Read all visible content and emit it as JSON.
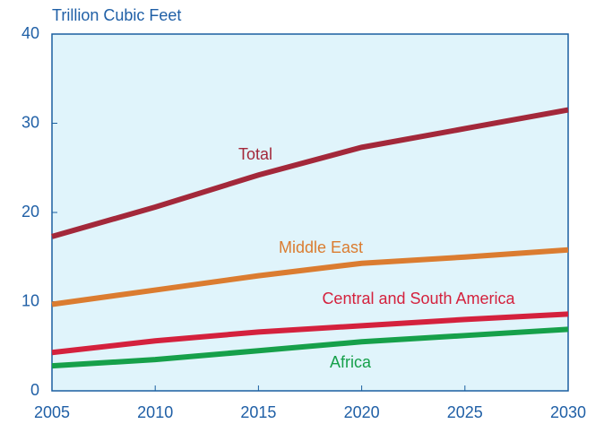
{
  "chart_data": {
    "type": "line",
    "y_axis_label": "Trillion Cubic Feet",
    "x": [
      2005,
      2010,
      2015,
      2020,
      2025,
      2030
    ],
    "xlim": [
      2005,
      2030
    ],
    "xticks": [
      2005,
      2010,
      2015,
      2020,
      2025,
      2030
    ],
    "ylim": [
      0,
      40
    ],
    "yticks": [
      0,
      10,
      20,
      30,
      40
    ],
    "series": [
      {
        "name": "Total",
        "color": "#a3283a",
        "values": [
          17.3,
          20.6,
          24.2,
          27.3,
          29.4,
          31.5
        ]
      },
      {
        "name": "Middle East",
        "color": "#db7c30",
        "values": [
          9.7,
          11.3,
          12.9,
          14.3,
          15.0,
          15.8
        ]
      },
      {
        "name": "Central and South America",
        "color": "#d4213d",
        "values": [
          4.3,
          5.6,
          6.6,
          7.3,
          8.0,
          8.6
        ]
      },
      {
        "name": "Africa",
        "color": "#16a04a",
        "values": [
          2.8,
          3.5,
          4.5,
          5.5,
          6.2,
          6.9
        ]
      }
    ]
  }
}
